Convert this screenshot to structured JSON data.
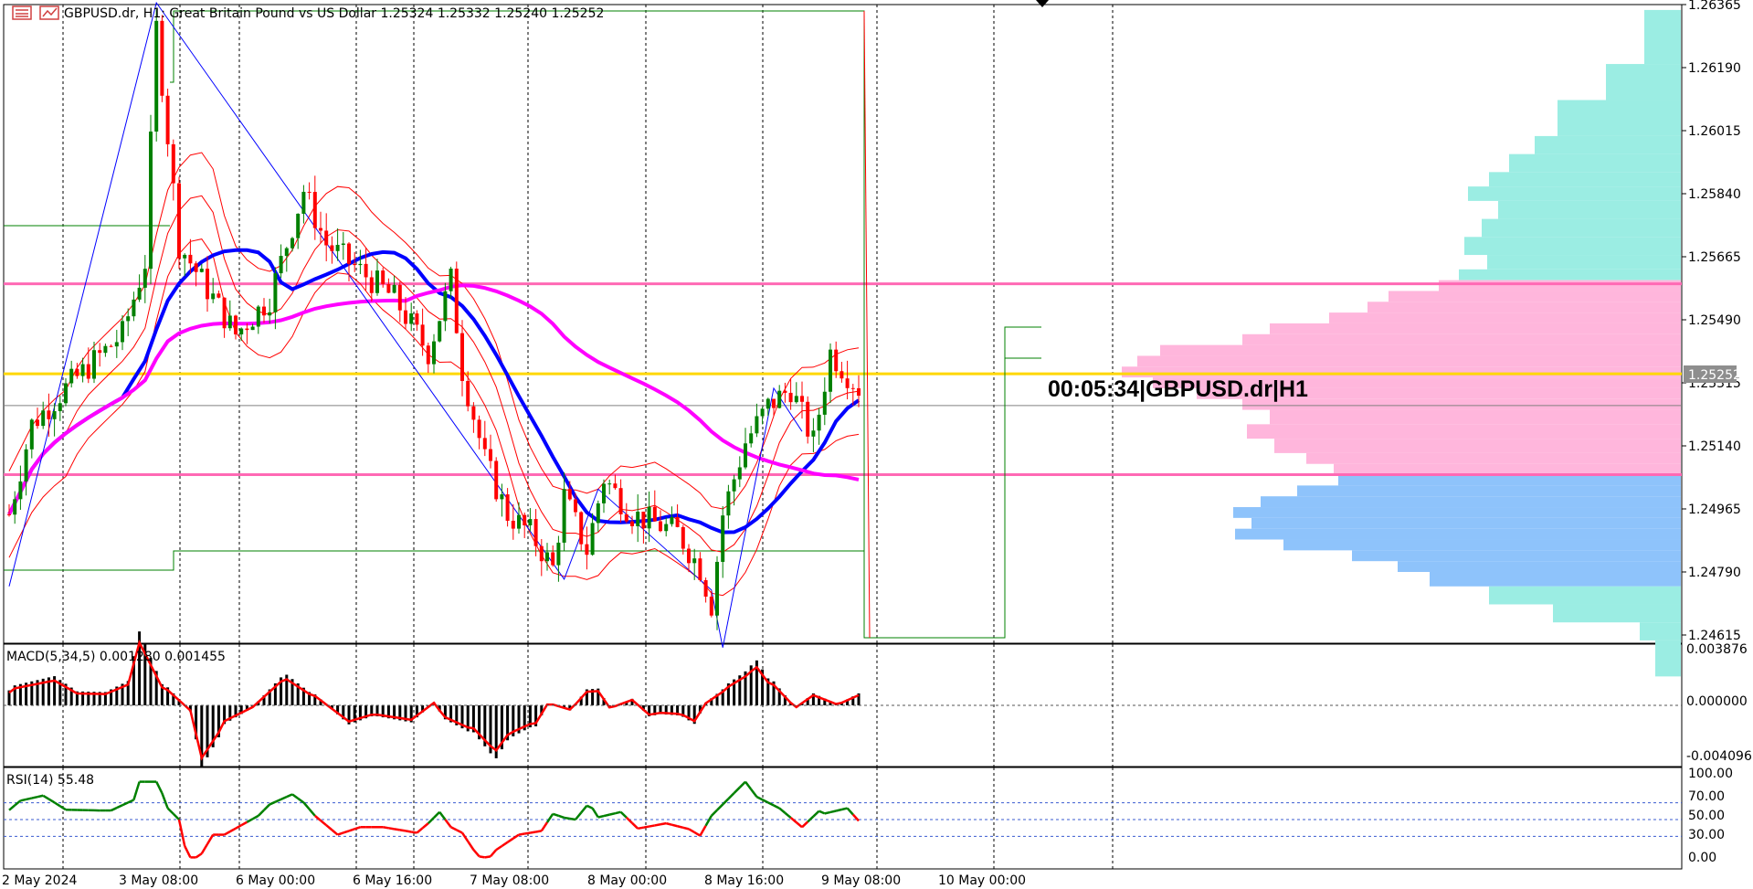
{
  "header": {
    "symbol_text": "GBPUSD.dr, H1:  Great Britain Pound vs US Dollar  1.25324 1.25332 1.25240 1.25252"
  },
  "timer_text": "00:05:34|GBPUSD.dr|H1",
  "colors": {
    "bull_candle": "#008000",
    "bear_candle": "#ff0000",
    "bollinger": "#ff0000",
    "ma_fast": "#0000ff",
    "ma_slow": "#ff00ff",
    "zigzag": "#0000ff",
    "level_pink": "#ff69b4",
    "level_yellow": "#ffd700",
    "donchian": "#008000",
    "profile_cyan": "#9bede3",
    "profile_pink": "#ffb6dc",
    "profile_blue": "#8ec3fb",
    "macd_signal": "#ff0000",
    "rsi_bull": "#008000",
    "rsi_bear": "#ff0000"
  },
  "chart_data": [
    {
      "type": "candlestick",
      "title": "GBPUSD.dr, H1",
      "ylim": [
        1.2447,
        1.2645
      ],
      "price_ticks": [
        "1.26365",
        "1.26190",
        "1.26015",
        "1.25840",
        "1.25665",
        "1.25490",
        "1.25315",
        "1.25140",
        "1.24965",
        "1.24790",
        "1.24615"
      ],
      "current_price_label": "1.25252",
      "x_tick_labels": [
        "2 May 2024",
        "3 May 08:00",
        "6 May 00:00",
        "6 May 16:00",
        "7 May 08:00",
        "8 May 00:00",
        "8 May 16:00",
        "9 May 08:00",
        "10 May 00:00"
      ],
      "ohlc": {
        "open": 1.25324,
        "high": 1.25332,
        "low": 1.2524,
        "close": 1.25252
      },
      "horizontal_levels": [
        {
          "value": 1.2559,
          "color": "pink"
        },
        {
          "value": 1.2534,
          "color": "yellow"
        },
        {
          "value": 1.2506,
          "color": "pink"
        },
        {
          "value": 1.25252,
          "color": "gray"
        }
      ]
    },
    {
      "type": "histogram+line",
      "title": "MACD(5,34,5) 0.001280 0.001455",
      "ylim": [
        -0.0043,
        0.0041
      ],
      "tick_labels": [
        "0.003876",
        "0.000000",
        "-0.004096"
      ]
    },
    {
      "type": "line",
      "title": "RSI(14) 55.48",
      "ylim": [
        -5,
        104
      ],
      "tick_labels": [
        "100.00",
        "70.00",
        "50.00",
        "30.00",
        "0.00"
      ],
      "levels": [
        70,
        50,
        30
      ]
    }
  ]
}
